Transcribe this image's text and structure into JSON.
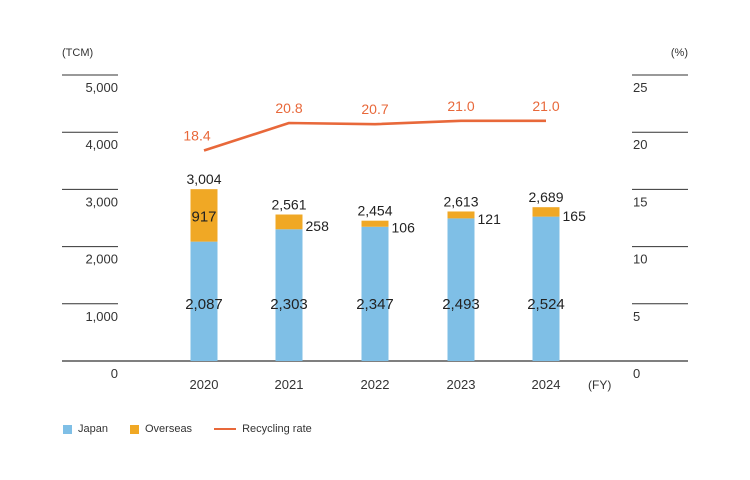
{
  "chart_data": {
    "type": "bar",
    "stacked": true,
    "categories": [
      "2020",
      "2021",
      "2022",
      "2023",
      "2024"
    ],
    "x_unit": "(FY)",
    "y_left": {
      "unit": "(TCM)",
      "ticks": [
        "0",
        "1,000",
        "2,000",
        "3,000",
        "4,000",
        "5,000"
      ],
      "range": [
        0,
        5000
      ]
    },
    "y_right": {
      "unit": "(%)",
      "ticks": [
        "0",
        "5",
        "10",
        "15",
        "20",
        "25"
      ],
      "range": [
        0,
        25
      ]
    },
    "series": [
      {
        "name": "Japan",
        "kind": "bar",
        "color": "#7fbfe6",
        "values": [
          2087,
          2303,
          2347,
          2493,
          2524
        ],
        "labels": [
          "2,087",
          "2,303",
          "2,347",
          "2,493",
          "2,524"
        ]
      },
      {
        "name": "Overseas",
        "kind": "bar",
        "color": "#f0a825",
        "values": [
          917,
          258,
          106,
          121,
          165
        ],
        "labels": [
          "917",
          "258",
          "106",
          "121",
          "165"
        ]
      },
      {
        "name": "Recycling rate",
        "kind": "line",
        "axis": "right",
        "color": "#e8683a",
        "values": [
          18.4,
          20.8,
          20.7,
          21.0,
          21.0
        ],
        "labels": [
          "18.4",
          "20.8",
          "20.7",
          "21.0",
          "21.0"
        ]
      }
    ],
    "totals": {
      "values": [
        3004,
        2561,
        2454,
        2613,
        2689
      ],
      "labels": [
        "3,004",
        "2,561",
        "2,454",
        "2,613",
        "2,689"
      ]
    },
    "legend_position": "bottom-left",
    "grid": true
  }
}
